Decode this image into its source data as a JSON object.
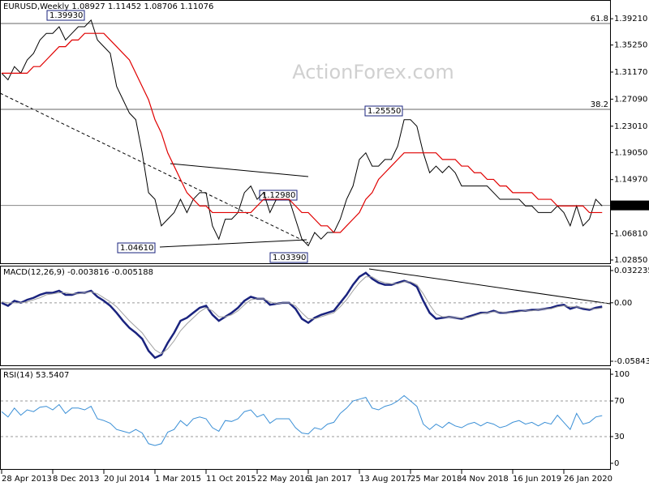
{
  "chart_data": [
    {
      "type": "line",
      "title": "EURUSD,Weekly  1.08927 1.11452 1.08706 1.11076",
      "watermark": "ActionForex.com",
      "categories": [
        "28 Apr 2013",
        null,
        null,
        null,
        null,
        null,
        null,
        null,
        "8 Dec 2013",
        null,
        null,
        null,
        null,
        null,
        null,
        null,
        "20 Jul 2014",
        null,
        null,
        null,
        null,
        null,
        null,
        null,
        "1 Mar 2015",
        null,
        null,
        null,
        null,
        null,
        null,
        null,
        "11 Oct 2015",
        null,
        null,
        null,
        null,
        null,
        null,
        null,
        "22 May 2016",
        null,
        null,
        null,
        null,
        null,
        null,
        null,
        "1 Jan 2017",
        null,
        null,
        null,
        null,
        null,
        null,
        null,
        "13 Aug 2017",
        null,
        null,
        null,
        null,
        null,
        null,
        null,
        "25 Mar 2018",
        null,
        null,
        null,
        null,
        null,
        null,
        null,
        "4 Nov 2018",
        null,
        null,
        null,
        null,
        null,
        null,
        null,
        "16 Jun 2019",
        null,
        null,
        null,
        null,
        null,
        null,
        null,
        "26 Jan 2020",
        null,
        null,
        null,
        null,
        null,
        null
      ],
      "series": [
        {
          "color": "#000000",
          "width": 1,
          "values": [
            1.31,
            1.3,
            1.32,
            1.31,
            1.33,
            1.34,
            1.36,
            1.37,
            1.37,
            1.38,
            1.36,
            1.37,
            1.38,
            1.38,
            1.39,
            1.36,
            1.35,
            1.34,
            1.29,
            1.27,
            1.25,
            1.24,
            1.19,
            1.13,
            1.12,
            1.08,
            1.09,
            1.1,
            1.12,
            1.1,
            1.12,
            1.13,
            1.13,
            1.08,
            1.06,
            1.09,
            1.09,
            1.1,
            1.13,
            1.14,
            1.12,
            1.13,
            1.1,
            1.12,
            1.12,
            1.12,
            1.09,
            1.06,
            1.05,
            1.07,
            1.06,
            1.07,
            1.07,
            1.09,
            1.12,
            1.14,
            1.18,
            1.19,
            1.17,
            1.17,
            1.18,
            1.18,
            1.2,
            1.24,
            1.24,
            1.23,
            1.19,
            1.16,
            1.17,
            1.16,
            1.17,
            1.16,
            1.14,
            1.14,
            1.14,
            1.14,
            1.14,
            1.13,
            1.12,
            1.12,
            1.12,
            1.12,
            1.11,
            1.11,
            1.1,
            1.1,
            1.1,
            1.11,
            1.1,
            1.08,
            1.11,
            1.08,
            1.09,
            1.12,
            1.11
          ]
        },
        {
          "color": "#e00000",
          "width": 1.2,
          "values": [
            1.31,
            1.31,
            1.31,
            1.31,
            1.31,
            1.32,
            1.32,
            1.33,
            1.34,
            1.35,
            1.35,
            1.36,
            1.36,
            1.37,
            1.37,
            1.37,
            1.37,
            1.36,
            1.35,
            1.34,
            1.33,
            1.31,
            1.29,
            1.27,
            1.24,
            1.22,
            1.19,
            1.17,
            1.15,
            1.13,
            1.12,
            1.11,
            1.11,
            1.1,
            1.1,
            1.1,
            1.1,
            1.1,
            1.1,
            1.1,
            1.11,
            1.12,
            1.12,
            1.12,
            1.12,
            1.12,
            1.11,
            1.1,
            1.1,
            1.09,
            1.08,
            1.08,
            1.07,
            1.07,
            1.08,
            1.09,
            1.1,
            1.12,
            1.13,
            1.15,
            1.16,
            1.17,
            1.18,
            1.19,
            1.19,
            1.19,
            1.19,
            1.19,
            1.19,
            1.18,
            1.18,
            1.18,
            1.17,
            1.17,
            1.16,
            1.16,
            1.15,
            1.15,
            1.14,
            1.14,
            1.13,
            1.13,
            1.13,
            1.13,
            1.12,
            1.12,
            1.12,
            1.11,
            1.11,
            1.11,
            1.11,
            1.11,
            1.1,
            1.1,
            1.1
          ]
        }
      ],
      "ylim": [
        1.0224,
        1.4203
      ],
      "yticks": [
        {
          "value": 1.3921,
          "label": "1.39210"
        },
        {
          "value": 1.3525,
          "label": "1.35250"
        },
        {
          "value": 1.3117,
          "label": "1.31170"
        },
        {
          "value": 1.2709,
          "label": "1.27090"
        },
        {
          "value": 1.2301,
          "label": "1.23010"
        },
        {
          "value": 1.1905,
          "label": "1.19050"
        },
        {
          "value": 1.1497,
          "label": "1.14970"
        },
        {
          "value": 1.0681,
          "label": "1.06810"
        },
        {
          "value": 1.0285,
          "label": "1.02850"
        }
      ],
      "grid": false,
      "last_price": {
        "value": 1.11076,
        "label": "1.11076"
      },
      "levels": [
        {
          "label": "61.8",
          "value": 1.3849
        },
        {
          "label": "38.2",
          "value": 1.2555
        }
      ],
      "price_labels": [
        "1.39930",
        "1.25550",
        "1.12980",
        "1.04610",
        "1.03390"
      ]
    },
    {
      "type": "line",
      "title": "MACD(12,26,9) -0.003816 -0.005188",
      "series": [
        {
          "color": "#1a237e",
          "width": 2.5,
          "values": [
            0.0,
            -0.003,
            0.002,
            0.0,
            0.003,
            0.005,
            0.008,
            0.01,
            0.01,
            0.012,
            0.008,
            0.008,
            0.01,
            0.01,
            0.012,
            0.006,
            0.002,
            -0.003,
            -0.01,
            -0.018,
            -0.025,
            -0.03,
            -0.036,
            -0.048,
            -0.055,
            -0.052,
            -0.04,
            -0.03,
            -0.018,
            -0.015,
            -0.01,
            -0.005,
            -0.003,
            -0.012,
            -0.018,
            -0.014,
            -0.01,
            -0.005,
            0.002,
            0.006,
            0.004,
            0.004,
            -0.002,
            -0.001,
            0.0,
            0.0,
            -0.006,
            -0.016,
            -0.02,
            -0.015,
            -0.012,
            -0.01,
            -0.008,
            0.0,
            0.008,
            0.018,
            0.026,
            0.03,
            0.024,
            0.02,
            0.018,
            0.018,
            0.02,
            0.022,
            0.02,
            0.016,
            0.002,
            -0.01,
            -0.016,
            -0.015,
            -0.014,
            -0.015,
            -0.016,
            -0.014,
            -0.012,
            -0.01,
            -0.01,
            -0.008,
            -0.01,
            -0.01,
            -0.009,
            -0.008,
            -0.008,
            -0.007,
            -0.007,
            -0.006,
            -0.005,
            -0.003,
            -0.002,
            -0.006,
            -0.004,
            -0.006,
            -0.007,
            -0.005,
            -0.003816
          ]
        },
        {
          "color": "#a0a0a0",
          "width": 1,
          "values": [
            0.001,
            0.0,
            0.0,
            0.0,
            0.001,
            0.003,
            0.005,
            0.008,
            0.009,
            0.01,
            0.01,
            0.009,
            0.009,
            0.01,
            0.011,
            0.009,
            0.005,
            0.001,
            -0.004,
            -0.011,
            -0.018,
            -0.024,
            -0.03,
            -0.039,
            -0.047,
            -0.051,
            -0.046,
            -0.038,
            -0.028,
            -0.021,
            -0.015,
            -0.009,
            -0.005,
            -0.008,
            -0.014,
            -0.014,
            -0.012,
            -0.008,
            -0.002,
            0.003,
            0.004,
            0.004,
            0.001,
            -0.001,
            0.0,
            0.0,
            -0.003,
            -0.01,
            -0.016,
            -0.016,
            -0.014,
            -0.012,
            -0.01,
            -0.004,
            0.003,
            0.012,
            0.02,
            0.026,
            0.026,
            0.022,
            0.02,
            0.019,
            0.019,
            0.021,
            0.021,
            0.018,
            0.009,
            -0.002,
            -0.011,
            -0.014,
            -0.014,
            -0.015,
            -0.015,
            -0.015,
            -0.013,
            -0.011,
            -0.01,
            -0.009,
            -0.009,
            -0.01,
            -0.01,
            -0.009,
            -0.008,
            -0.008,
            -0.007,
            -0.006,
            -0.006,
            -0.004,
            -0.003,
            -0.004,
            -0.004,
            -0.005,
            -0.006,
            -0.006,
            -0.005188
          ]
        }
      ],
      "ylim": [
        -0.06329,
        0.03709
      ],
      "yticks": [
        0.032235,
        {
          "value": 0,
          "label": "0.00"
        },
        -0.058434
      ],
      "grid": "dashed"
    },
    {
      "type": "line",
      "title": "RSI(14) 53.5407",
      "series": [
        {
          "color": "#3a8fd6",
          "width": 1,
          "values": [
            58,
            52,
            62,
            54,
            60,
            58,
            63,
            64,
            60,
            66,
            56,
            62,
            62,
            60,
            64,
            50,
            48,
            45,
            38,
            36,
            34,
            38,
            34,
            22,
            20,
            22,
            35,
            38,
            48,
            42,
            50,
            52,
            50,
            40,
            36,
            48,
            47,
            50,
            58,
            60,
            52,
            55,
            45,
            50,
            50,
            50,
            40,
            34,
            33,
            40,
            38,
            44,
            46,
            56,
            62,
            70,
            72,
            74,
            62,
            60,
            64,
            66,
            70,
            76,
            70,
            64,
            44,
            38,
            44,
            40,
            46,
            42,
            40,
            44,
            46,
            42,
            46,
            44,
            40,
            42,
            46,
            48,
            44,
            46,
            42,
            46,
            44,
            54,
            46,
            38,
            56,
            44,
            46,
            52,
            53.5407
          ]
        }
      ],
      "ylim": [
        -7.3,
        106.4
      ],
      "yticks": [
        100,
        70,
        30,
        0
      ],
      "grid": "dashed"
    }
  ]
}
